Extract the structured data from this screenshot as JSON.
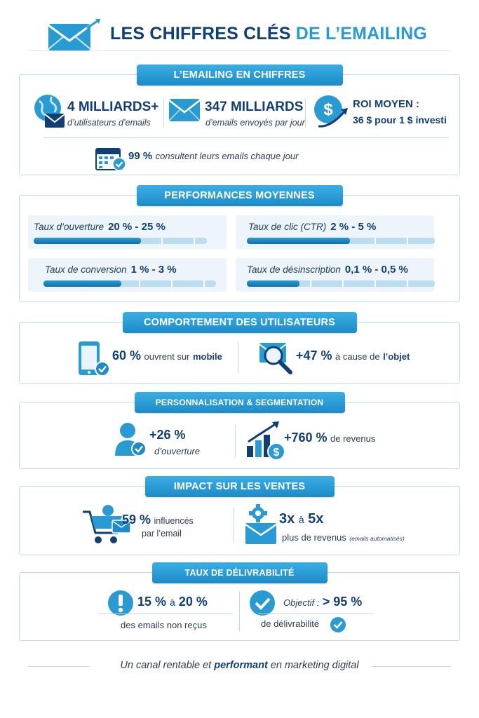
{
  "header": {
    "title_part1": "LES CHIFFRES CLÉS",
    "title_part2": "DE L’EMAILING"
  },
  "emailing": {
    "pill": "L’EMAILING EN CHIFFRES",
    "users_value": "4 MILLIARDS+",
    "users_label": "d’utilisateurs d’emails",
    "sent_value": "347 MILLIARDS",
    "sent_label": "d’emails envoyés par jour",
    "roi_title": "ROI MOYEN :",
    "roi_value": "36 $ pour 1 $ investi",
    "daily_value": "99 %",
    "daily_label": "consultent leurs emails chaque jour"
  },
  "performance": {
    "pill": "PERFORMANCES MOYENNES",
    "metrics": [
      {
        "label": "Taux d’ouverture",
        "value": "20 % - 25 %",
        "fill": 0.62
      },
      {
        "label": "Taux de clic (CTR)",
        "value": "2 % - 5 %",
        "fill": 0.55
      },
      {
        "label": "Taux de conversion",
        "value": "1 % - 3 %",
        "fill": 0.45
      },
      {
        "label": "Taux de désinscription",
        "value": "0,1 % - 0,5 %",
        "fill": 0.28
      }
    ]
  },
  "behavior": {
    "pill": "COMPORTEMENT DES UTILISATEURS",
    "mobile_value": "60 %",
    "mobile_label_a": "ouvrent sur",
    "mobile_label_b": "mobile",
    "subject_value": "+47 %",
    "subject_label_a": "à cause de",
    "subject_label_b": "l’objet"
  },
  "personalisation": {
    "pill": "PERSONNALISATION & SEGMENTATION",
    "open_value": "+26 %",
    "open_label": "d’ouverture",
    "revenue_value": "+760 %",
    "revenue_label": "de revenus"
  },
  "sales": {
    "pill": "IMPACT SUR LES VENTES",
    "influence_value": "59 %",
    "influence_label_a": "influencés",
    "influence_label_b": "par l’email",
    "auto_value_a": "3x",
    "auto_value_mid": "à",
    "auto_value_b": "5x",
    "auto_label": "plus de revenus",
    "auto_note": "(emails automatisés)"
  },
  "deliverability": {
    "pill": "TAUX DE DÉLIVRABILITÉ",
    "missed_value_a": "15 %",
    "missed_value_mid": "à",
    "missed_value_b": "20 %",
    "missed_label": "des emails non reçus",
    "target_label": "Objectif :",
    "target_value": "> 95 %",
    "target_sub": "de délivrabilité"
  },
  "footer": {
    "text_a": "Un canal rentable et",
    "text_b": "performant",
    "text_c": "en marketing digital"
  },
  "colors": {
    "navy": "#123f73",
    "accent": "#2a9ad2",
    "border": "#b9dcef"
  }
}
